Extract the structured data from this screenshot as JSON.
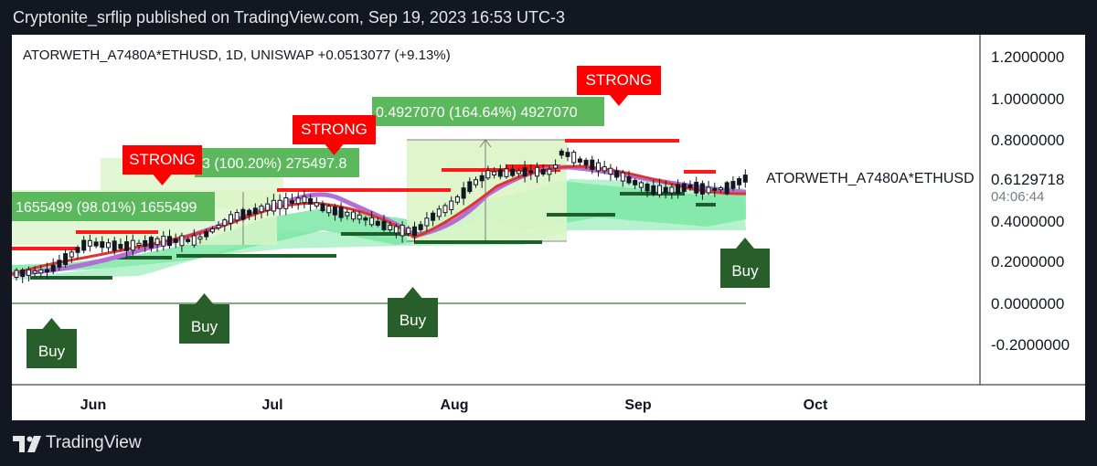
{
  "header": {
    "publish_line": "Cryptonite_srflip published on TradingView.com, Sep 19, 2023 16:53 UTC-3"
  },
  "footer": {
    "brand": "TradingView"
  },
  "chart_data": {
    "type": "candlestick",
    "legend": "ATORWETH_A7480A*ETHUSD, 1D, UNISWAP  +0.0513077 (+9.13%)",
    "symbol": "ATORWETH_A7480A*ETHUSD",
    "last_price": "0.6129718",
    "countdown": "04:06:44",
    "y_ticks": [
      "1.2000000",
      "1.0000000",
      "0.8000000",
      "0.4000000",
      "0.2000000",
      "0.0000000",
      "-0.2000000"
    ],
    "x_ticks": [
      "Jun",
      "Jul",
      "Aug",
      "Sep",
      "Oct"
    ],
    "colors": {
      "up_candle": "#ffffff",
      "down_candle": "#131722",
      "band_fill": "#7ce7a6",
      "resistance": "#ff1a1a",
      "support": "#1e5e2b",
      "ma_red": "#e0342e",
      "ma_purple": "#b26fd6",
      "buy_box": "#275e2a",
      "strong_box": "#ff0000",
      "measure_fill": "#dbf5c8",
      "measure_label": "#5cb85c"
    },
    "measures": [
      {
        "text": "1655499 (98.01%) 1655499"
      },
      {
        "text": "3 (100.20%) 275497.8"
      },
      {
        "text": "0.4927070 (164.64%) 4927070"
      }
    ],
    "buy_labels": [
      "Buy",
      "Buy",
      "Buy",
      "Buy"
    ],
    "strong_labels": [
      "STRONG",
      "STRONG",
      "STRONG"
    ]
  }
}
